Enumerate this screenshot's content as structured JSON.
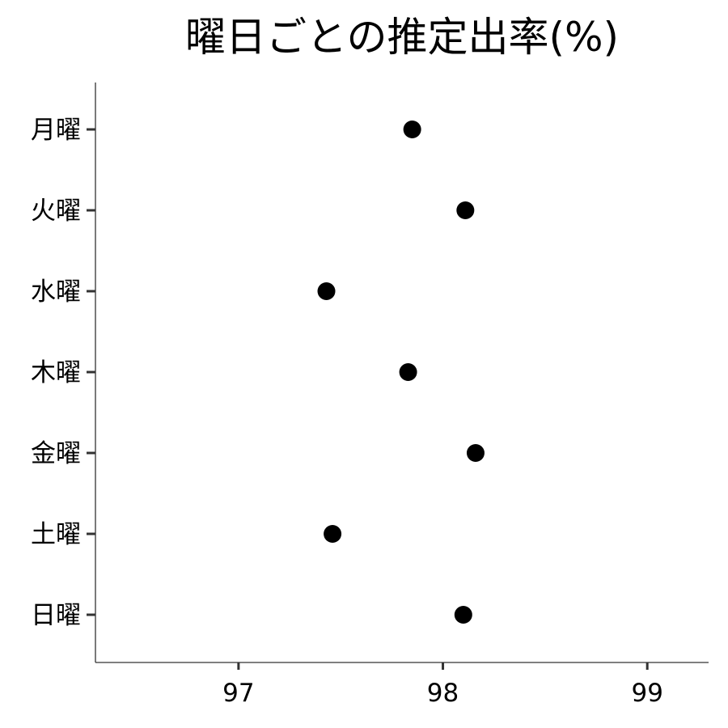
{
  "chart_data": {
    "type": "scatter",
    "title": "曜日ごとの推定出率(%)",
    "xlabel": "",
    "ylabel": "",
    "categories": [
      "月曜",
      "火曜",
      "水曜",
      "木曜",
      "金曜",
      "土曜",
      "日曜"
    ],
    "values": [
      97.85,
      98.11,
      97.43,
      97.83,
      98.16,
      97.46,
      98.1
    ],
    "xlim": [
      96.3,
      99.3
    ],
    "xticks": [
      "97",
      "98",
      "99"
    ],
    "grid": false,
    "legend": "none",
    "point_color": "#000000"
  }
}
